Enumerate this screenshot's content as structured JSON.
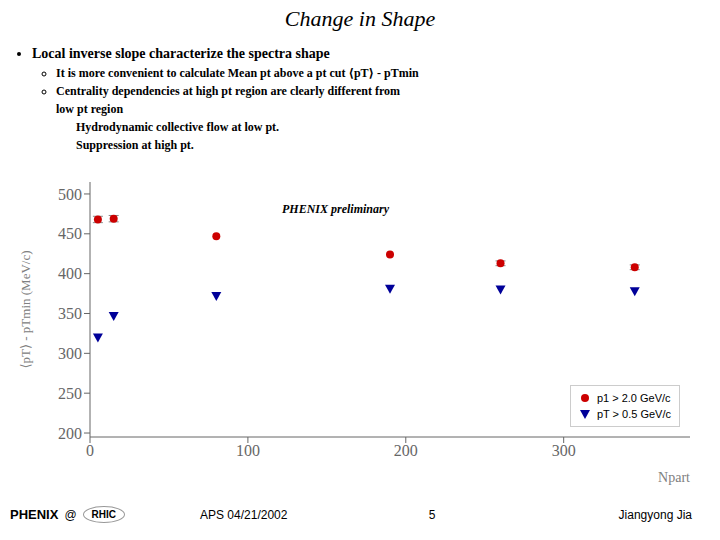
{
  "chart_data": {
    "type": "scatter",
    "title": "Change in Shape",
    "annotations": [
      "Local inverse slope characterize the spectra shape",
      "It is more convenient to calculate Mean pt above a pt cut ⟨pT⟩ - pTmin",
      "Centrality dependencies at high pt region are clearly different from",
      "low pt region",
      "Hydrodynamic collective flow at low pt.",
      "Suppression at high pt.",
      "PHENIX preliminary",
      "APS 04/21/2002",
      "5",
      "Jiangyong Jia",
      "PHENIX",
      "@",
      "RHIC"
    ],
    "x_label": "Npart",
    "y_label": "⟨pT⟩ - pTmin (MeV/c)",
    "xlim": [
      0,
      380
    ],
    "ylim": [
      195,
      515
    ],
    "xticks": [
      0,
      100,
      200,
      300
    ],
    "yticks": [
      200,
      250,
      300,
      350,
      400,
      450,
      500
    ],
    "grid": false,
    "legend": "lower right",
    "series": [
      {
        "name": "p1 > 2.0 GeV/c",
        "color": "#cc0000",
        "marker": "circle",
        "x": [
          5,
          15,
          80,
          190,
          260,
          345
        ],
        "values": [
          468,
          469,
          447,
          424,
          413,
          408
        ],
        "errors": [
          4,
          4,
          0,
          0,
          3,
          3
        ]
      },
      {
        "name": "pT > 0.5 GeV/c",
        "color": "#000099",
        "marker": "triangle-down",
        "x": [
          5,
          15,
          80,
          190,
          260,
          345
        ],
        "values": [
          320,
          347,
          372,
          381,
          380,
          378
        ]
      }
    ]
  }
}
